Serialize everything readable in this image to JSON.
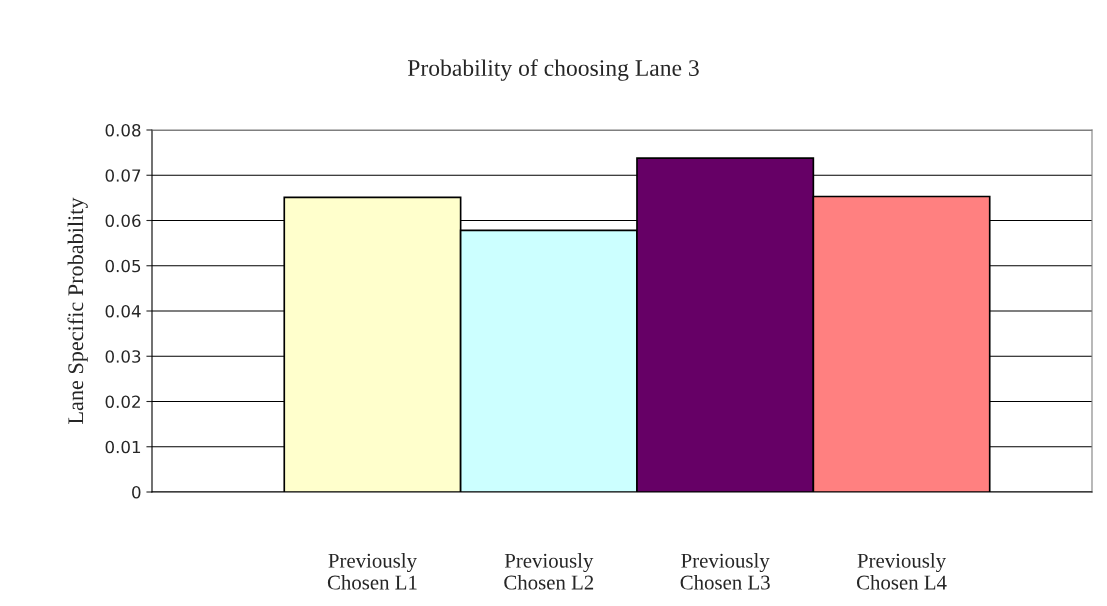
{
  "chart_data": {
    "type": "bar",
    "title": "Probability of choosing Lane 3",
    "ylabel": "Lane Specific Probability",
    "categories": [
      "Previously\nChosen L1",
      "Previously\nChosen L2",
      "Previously\nChosen L3",
      "Previously\nChosen L4"
    ],
    "values": [
      0.0651,
      0.0578,
      0.0738,
      0.0653
    ],
    "colors": [
      "#ffffcc",
      "#ccffff",
      "#660066",
      "#ff8080"
    ],
    "ylim": [
      0,
      0.08
    ],
    "yticks": [
      0,
      0.01,
      0.02,
      0.03,
      0.04,
      0.05,
      0.06,
      0.07,
      0.08
    ],
    "grid": "y",
    "legend": false
  }
}
